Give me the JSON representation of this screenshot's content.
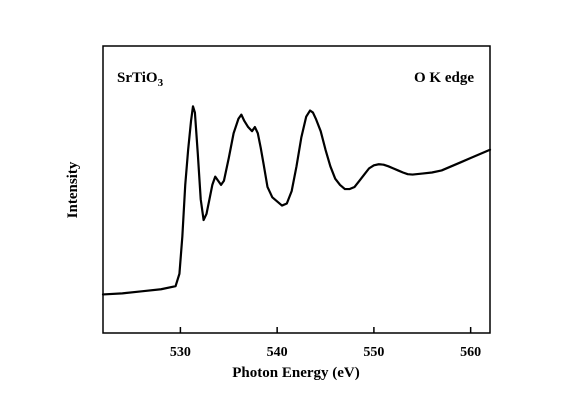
{
  "chart_data": {
    "type": "line",
    "title": "",
    "xlabel": "Photon Energy (eV)",
    "ylabel": "Intensity",
    "xlim": [
      522,
      562
    ],
    "ylim": [
      0,
      1
    ],
    "x_ticks": [
      530,
      540,
      550,
      560
    ],
    "y_ticks": [],
    "grid": false,
    "legend": "none",
    "annotations": {
      "sample": {
        "base": "SrTiO",
        "subscript": "3"
      },
      "edge": "O K edge"
    },
    "series": [
      {
        "values_x": [
          522.0,
          524.0,
          526.0,
          528.0,
          529.5,
          529.9,
          530.2,
          530.5,
          530.8,
          531.1,
          531.3,
          531.5,
          531.8,
          532.1,
          532.4,
          532.7,
          533.0,
          533.3,
          533.6,
          533.9,
          534.2,
          534.5,
          535.0,
          535.5,
          536.0,
          536.3,
          536.6,
          537.0,
          537.4,
          537.7,
          538.0,
          538.3,
          538.6,
          539.0,
          539.5,
          540.0,
          540.5,
          541.0,
          541.5,
          542.0,
          542.5,
          543.0,
          543.4,
          543.7,
          544.0,
          544.5,
          545.0,
          545.5,
          546.0,
          546.5,
          547.0,
          547.5,
          548.0,
          548.5,
          549.0,
          549.5,
          550.0,
          550.5,
          551.0,
          551.5,
          552.0,
          552.5,
          553.0,
          553.5,
          554.0,
          555.0,
          556.0,
          557.0,
          558.0,
          559.0,
          560.0,
          561.0,
          562.0
        ],
        "values_y": [
          0.02,
          0.025,
          0.035,
          0.045,
          0.06,
          0.12,
          0.3,
          0.55,
          0.72,
          0.86,
          0.93,
          0.9,
          0.7,
          0.48,
          0.38,
          0.41,
          0.48,
          0.55,
          0.59,
          0.57,
          0.55,
          0.57,
          0.68,
          0.8,
          0.87,
          0.89,
          0.86,
          0.83,
          0.81,
          0.83,
          0.8,
          0.73,
          0.65,
          0.54,
          0.49,
          0.47,
          0.45,
          0.46,
          0.52,
          0.64,
          0.78,
          0.88,
          0.91,
          0.9,
          0.87,
          0.81,
          0.72,
          0.64,
          0.58,
          0.55,
          0.53,
          0.53,
          0.54,
          0.57,
          0.6,
          0.63,
          0.645,
          0.65,
          0.648,
          0.64,
          0.63,
          0.62,
          0.61,
          0.602,
          0.6,
          0.605,
          0.61,
          0.62,
          0.64,
          0.66,
          0.68,
          0.7,
          0.72
        ]
      }
    ]
  },
  "colors": {
    "line": "#000000",
    "axes": "#000000",
    "background": "#ffffff"
  }
}
